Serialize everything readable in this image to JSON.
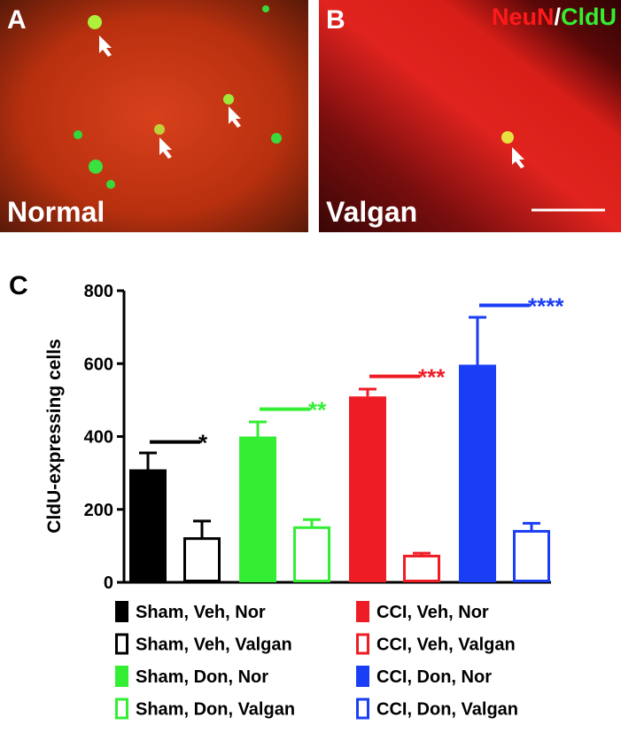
{
  "panels": [
    {
      "label": "A",
      "caption": "Normal"
    },
    {
      "label": "B",
      "caption": "Valgan",
      "stain": [
        "NeuN",
        "/",
        "CldU"
      ]
    }
  ],
  "chart_data": {
    "type": "bar",
    "label": "C",
    "y_label": "CldU-expressing cells",
    "categories": [
      "Sham, Veh, Nor",
      "Sham, Veh, Valgan",
      "Sham, Don, Nor",
      "Sham, Don, Valgan",
      "CCI, Veh, Nor",
      "CCI, Veh, Valgan",
      "CCI, Don, Nor",
      "CCI, Don, Valgan"
    ],
    "values": [
      310,
      120,
      400,
      150,
      510,
      72,
      597,
      140
    ],
    "errors": [
      45,
      48,
      40,
      22,
      20,
      8,
      130,
      22
    ],
    "colors": [
      "#000000",
      "#000000",
      "#33ee33",
      "#33ee33",
      "#ee1c25",
      "#ee1c25",
      "#1a3ef5",
      "#1a3ef5"
    ],
    "filled": [
      true,
      false,
      true,
      false,
      true,
      false,
      true,
      false
    ],
    "ylim": [
      0,
      800
    ],
    "yticks": [
      0,
      200,
      400,
      600,
      800
    ],
    "annotations": [
      {
        "text": "*",
        "y": 385,
        "color": "#000000"
      },
      {
        "text": "**",
        "y": 475,
        "color": "#33ee33"
      },
      {
        "text": "***",
        "y": 565,
        "color": "#ee1c25"
      },
      {
        "text": "****",
        "y": 760,
        "color": "#1a3ef5"
      }
    ]
  }
}
